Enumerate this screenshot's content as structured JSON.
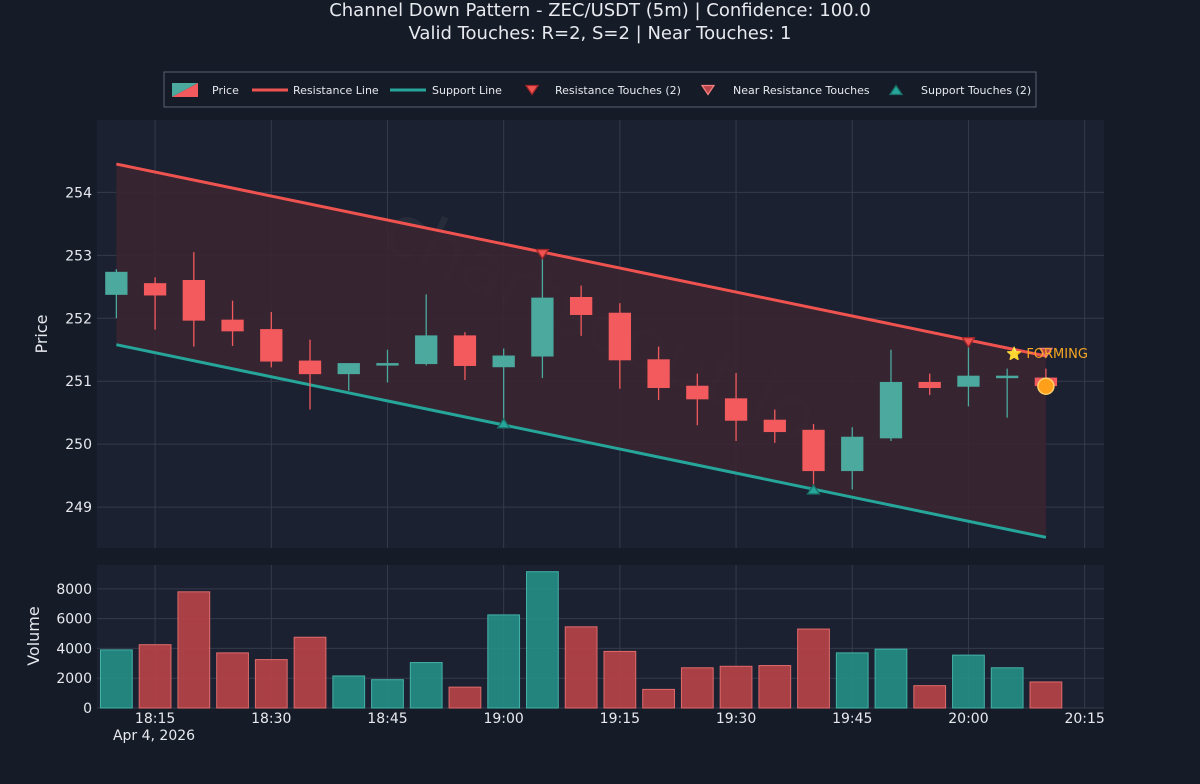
{
  "chart_data": {
    "type": "candlestick",
    "title": "Channel Down Pattern - ZEC/USDT (5m) | Confidence: 100.0",
    "subtitle": "Valid Touches: R=2, S=2 | Near Touches: 1",
    "legend": {
      "placement": "top-center",
      "items": [
        "Price",
        "Resistance Line",
        "Support Line",
        "Resistance Touches (2)",
        "Near Resistance Touches",
        "Support Touches (2)"
      ]
    },
    "price_axis": {
      "label": "Price",
      "ticks": [
        249,
        250,
        251,
        252,
        253,
        254
      ],
      "range": [
        248.35,
        255.15
      ]
    },
    "volume_axis": {
      "label": "Volume",
      "ticks": [
        0,
        2000,
        4000,
        6000,
        8000
      ],
      "tick_labels": [
        "0",
        "2000",
        "4000",
        "6000",
        "8000"
      ],
      "range": [
        0,
        9600
      ]
    },
    "time_axis": {
      "ticks": [
        {
          "label": "18:15",
          "min": 15
        },
        {
          "label": "18:30",
          "min": 30
        },
        {
          "label": "18:45",
          "min": 45
        },
        {
          "label": "19:00",
          "min": 60
        },
        {
          "label": "19:15",
          "min": 75
        },
        {
          "label": "19:30",
          "min": 90
        },
        {
          "label": "19:45",
          "min": 105
        },
        {
          "label": "20:00",
          "min": 120
        },
        {
          "label": "20:15",
          "min": 135
        }
      ],
      "date_label": "Apr 4, 2026",
      "range_minutes": [
        7.5,
        137.5
      ]
    },
    "candles": [
      {
        "t": 10,
        "o": 252.38,
        "h": 252.78,
        "l": 252.0,
        "c": 252.73,
        "v": 3900
      },
      {
        "t": 15,
        "o": 252.55,
        "h": 252.65,
        "l": 251.82,
        "c": 252.37,
        "v": 4250
      },
      {
        "t": 20,
        "o": 252.6,
        "h": 253.05,
        "l": 251.55,
        "c": 251.97,
        "v": 7800
      },
      {
        "t": 25,
        "o": 251.97,
        "h": 252.28,
        "l": 251.56,
        "c": 251.8,
        "v": 3700
      },
      {
        "t": 30,
        "o": 251.82,
        "h": 252.1,
        "l": 251.22,
        "c": 251.32,
        "v": 3250
      },
      {
        "t": 35,
        "o": 251.32,
        "h": 251.66,
        "l": 250.55,
        "c": 251.12,
        "v": 4750
      },
      {
        "t": 40,
        "o": 251.12,
        "h": 251.28,
        "l": 250.85,
        "c": 251.28,
        "v": 2150
      },
      {
        "t": 45,
        "o": 251.26,
        "h": 251.5,
        "l": 250.98,
        "c": 251.28,
        "v": 1900
      },
      {
        "t": 50,
        "o": 251.28,
        "h": 252.38,
        "l": 251.25,
        "c": 251.72,
        "v": 3050
      },
      {
        "t": 55,
        "o": 251.72,
        "h": 251.78,
        "l": 251.02,
        "c": 251.25,
        "v": 1400
      },
      {
        "t": 60,
        "o": 251.23,
        "h": 251.52,
        "l": 250.33,
        "c": 251.4,
        "v": 6250
      },
      {
        "t": 65,
        "o": 251.4,
        "h": 253.02,
        "l": 251.05,
        "c": 252.32,
        "v": 9150
      },
      {
        "t": 70,
        "o": 252.33,
        "h": 252.52,
        "l": 251.72,
        "c": 252.06,
        "v": 5450
      },
      {
        "t": 75,
        "o": 252.08,
        "h": 252.24,
        "l": 250.88,
        "c": 251.34,
        "v": 3800
      },
      {
        "t": 80,
        "o": 251.34,
        "h": 251.55,
        "l": 250.7,
        "c": 250.9,
        "v": 1250
      },
      {
        "t": 85,
        "o": 250.92,
        "h": 251.12,
        "l": 250.3,
        "c": 250.72,
        "v": 2700
      },
      {
        "t": 90,
        "o": 250.72,
        "h": 251.13,
        "l": 250.05,
        "c": 250.38,
        "v": 2800
      },
      {
        "t": 95,
        "o": 250.38,
        "h": 250.55,
        "l": 250.02,
        "c": 250.2,
        "v": 2850
      },
      {
        "t": 100,
        "o": 250.22,
        "h": 250.32,
        "l": 249.3,
        "c": 249.58,
        "v": 5300
      },
      {
        "t": 105,
        "o": 249.58,
        "h": 250.27,
        "l": 249.28,
        "c": 250.11,
        "v": 3700
      },
      {
        "t": 110,
        "o": 250.1,
        "h": 251.5,
        "l": 250.05,
        "c": 250.98,
        "v": 3950
      },
      {
        "t": 115,
        "o": 250.98,
        "h": 251.12,
        "l": 250.78,
        "c": 250.9,
        "v": 1500
      },
      {
        "t": 120,
        "o": 250.92,
        "h": 251.62,
        "l": 250.6,
        "c": 251.08,
        "v": 3550
      },
      {
        "t": 125,
        "o": 251.08,
        "h": 251.2,
        "l": 250.42,
        "c": 251.08,
        "v": 2700
      },
      {
        "t": 130,
        "o": 251.05,
        "h": 251.2,
        "l": 250.95,
        "c": 250.93,
        "v": 1750
      }
    ],
    "resistance_line": {
      "t0": 10,
      "p0": 254.45,
      "t1": 130,
      "p1": 251.4
    },
    "support_line": {
      "t0": 10,
      "p0": 251.58,
      "t1": 130,
      "p1": 248.52
    },
    "resistance_touches": [
      {
        "t": 65,
        "p": 253.02
      },
      {
        "t": 120,
        "p": 251.62
      }
    ],
    "near_resistance_touches": [
      {
        "t": 130,
        "p": 251.45
      }
    ],
    "support_touches": [
      {
        "t": 60,
        "p": 250.33
      },
      {
        "t": 100,
        "p": 249.28
      }
    ],
    "forming_marker": {
      "t": 130,
      "p": 250.92
    },
    "annotation": "⭐ FORMING",
    "watermark": "chartscout.io",
    "colors": {
      "background": "#151b27",
      "plot_background": "#1b2130",
      "grid": "#343b4b",
      "bullish": "#4ba99e",
      "bearish": "#f35a5d",
      "resistance": "#ef5350",
      "support": "#26a69a",
      "channel_fill": "#3b2430",
      "text": "#e7e9ee",
      "annotation": "#f6a623"
    }
  }
}
